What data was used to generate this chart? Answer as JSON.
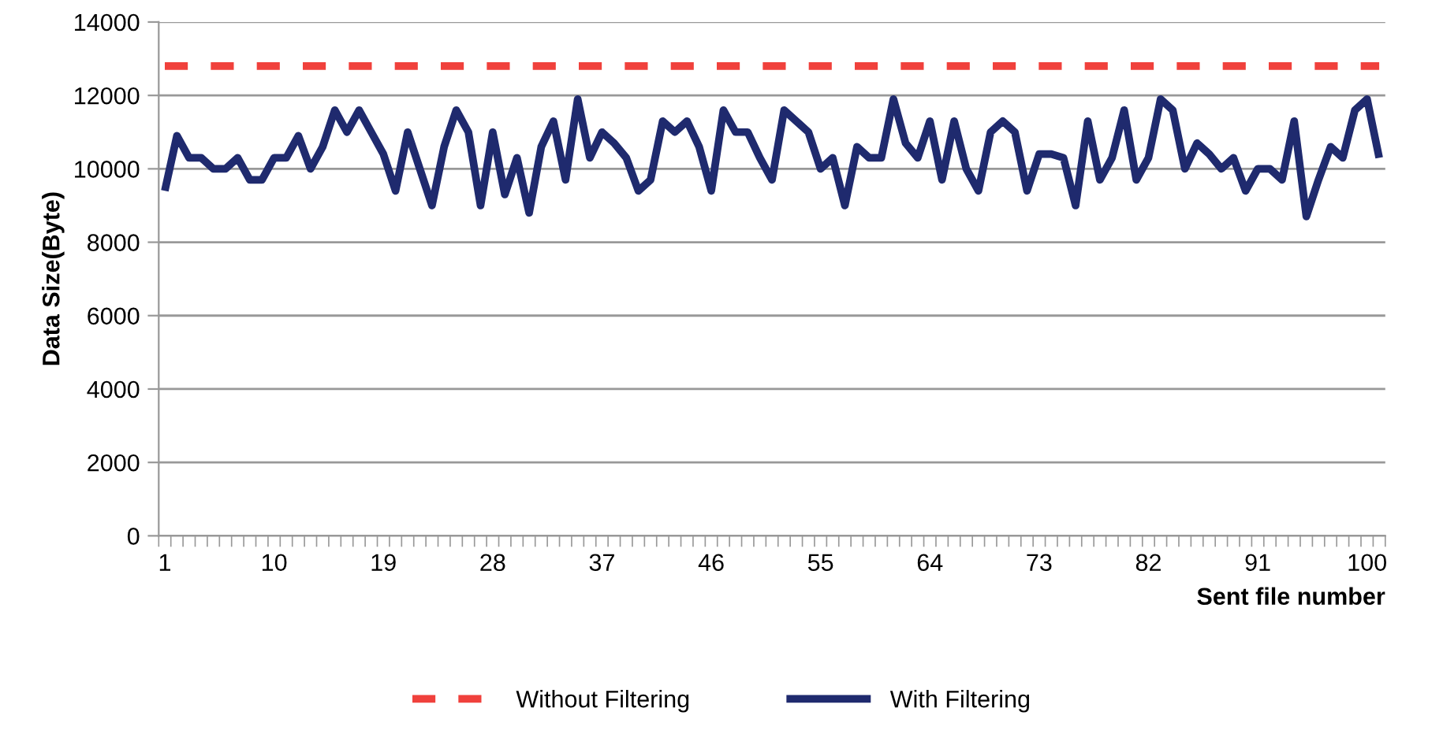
{
  "chart_data": {
    "type": "line",
    "xlabel": "Sent file number",
    "ylabel": "Data Size(Byte)",
    "categories": [
      "1",
      null,
      null,
      null,
      null,
      null,
      null,
      null,
      null,
      "10",
      null,
      null,
      null,
      null,
      null,
      null,
      null,
      null,
      "19",
      null,
      null,
      null,
      null,
      null,
      null,
      null,
      null,
      "28",
      null,
      null,
      null,
      null,
      null,
      null,
      null,
      null,
      "37",
      null,
      null,
      null,
      null,
      null,
      null,
      null,
      null,
      "46",
      null,
      null,
      null,
      null,
      null,
      null,
      null,
      null,
      "55",
      null,
      null,
      null,
      null,
      null,
      null,
      null,
      null,
      "64",
      null,
      null,
      null,
      null,
      null,
      null,
      null,
      null,
      "73",
      null,
      null,
      null,
      null,
      null,
      null,
      null,
      null,
      "82",
      null,
      null,
      null,
      null,
      null,
      null,
      null,
      null,
      "91",
      null,
      null,
      null,
      null,
      null,
      null,
      null,
      null,
      "100",
      null
    ],
    "series": [
      {
        "name": "Without Filtering",
        "color": "#f0413c",
        "line_style": "dashed",
        "values": [
          12800,
          12800,
          12800,
          12800,
          12800,
          12800,
          12800,
          12800,
          12800,
          12800,
          12800,
          12800,
          12800,
          12800,
          12800,
          12800,
          12800,
          12800,
          12800,
          12800,
          12800,
          12800,
          12800,
          12800,
          12800,
          12800,
          12800,
          12800,
          12800,
          12800,
          12800,
          12800,
          12800,
          12800,
          12800,
          12800,
          12800,
          12800,
          12800,
          12800,
          12800,
          12800,
          12800,
          12800,
          12800,
          12800,
          12800,
          12800,
          12800,
          12800,
          12800,
          12800,
          12800,
          12800,
          12800,
          12800,
          12800,
          12800,
          12800,
          12800,
          12800,
          12800,
          12800,
          12800,
          12800,
          12800,
          12800,
          12800,
          12800,
          12800,
          12800,
          12800,
          12800,
          12800,
          12800,
          12800,
          12800,
          12800,
          12800,
          12800,
          12800,
          12800,
          12800,
          12800,
          12800,
          12800,
          12800,
          12800,
          12800,
          12800,
          12800,
          12800,
          12800,
          12800,
          12800,
          12800,
          12800,
          12800,
          12800,
          12800,
          12800
        ]
      },
      {
        "name": "With Filtering",
        "color": "#1f2a6e",
        "line_style": "solid",
        "values": [
          9400,
          10900,
          10300,
          10300,
          10000,
          10000,
          10300,
          9700,
          9700,
          10300,
          10300,
          10900,
          10000,
          10600,
          11600,
          11000,
          11600,
          11000,
          10400,
          9400,
          11000,
          10000,
          9000,
          10600,
          11600,
          11000,
          9000,
          11000,
          9300,
          10300,
          8800,
          10600,
          11300,
          9700,
          11900,
          10300,
          11000,
          10700,
          10300,
          9400,
          9700,
          11300,
          11000,
          11300,
          10600,
          9400,
          11600,
          11000,
          11000,
          10300,
          9700,
          11600,
          11300,
          11000,
          10000,
          10300,
          9000,
          10600,
          10300,
          10300,
          11900,
          10700,
          10300,
          11300,
          9700,
          11300,
          10000,
          9400,
          11000,
          11300,
          11000,
          9400,
          10400,
          10400,
          10300,
          9000,
          11300,
          9700,
          10300,
          11600,
          9700,
          10300,
          11900,
          11600,
          10000,
          10700,
          10400,
          10000,
          10300,
          9400,
          10000,
          10000,
          9700,
          11300,
          8700,
          9700,
          10600,
          10300,
          11600,
          11900,
          10300
        ]
      }
    ],
    "ylim": [
      0,
      14000
    ],
    "yticks": [
      0,
      2000,
      4000,
      6000,
      8000,
      10000,
      12000,
      14000
    ],
    "grid": "y",
    "legend": "bottom",
    "marker": "none"
  }
}
